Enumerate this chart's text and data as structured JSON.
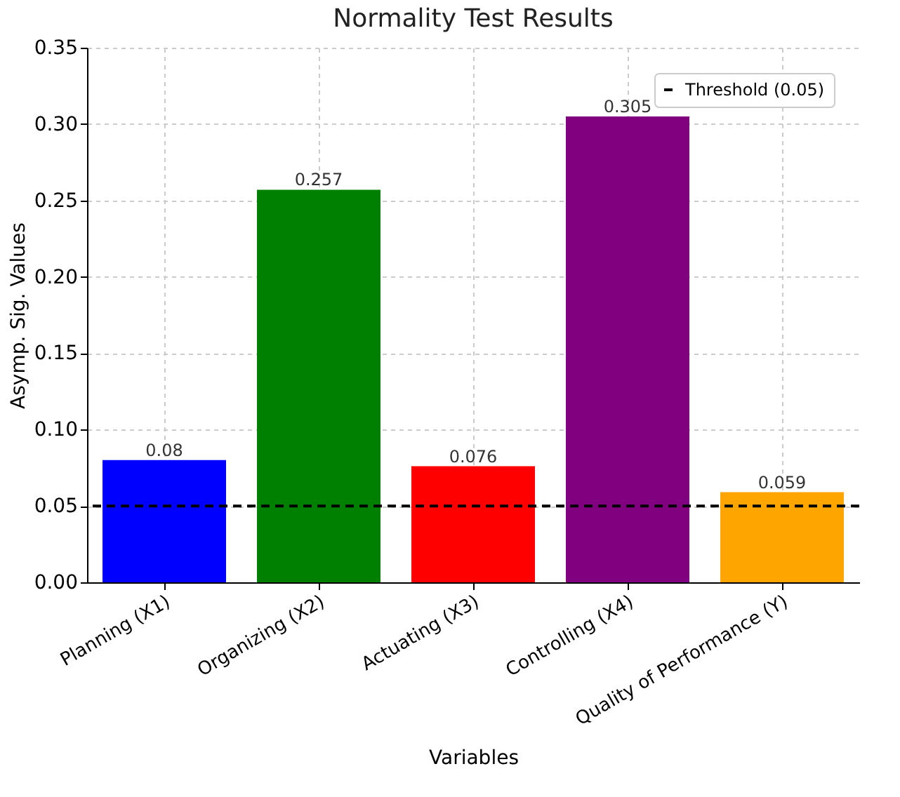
{
  "chart_data": {
    "type": "bar",
    "title": "Normality Test Results",
    "xlabel": "Variables",
    "ylabel": "Asymp. Sig. Values",
    "categories": [
      "Planning (X1)",
      "Organizing (X2)",
      "Actuating (X3)",
      "Controlling (X4)",
      "Quality of Performance (Y)"
    ],
    "values": [
      0.08,
      0.257,
      0.076,
      0.305,
      0.059
    ],
    "colors": [
      "#0000ff",
      "#008000",
      "#ff0000",
      "#800080",
      "#ffa500"
    ],
    "ylim": [
      0,
      0.35
    ],
    "yticks": [
      {
        "value": 0,
        "label": "0.00"
      },
      {
        "value": 0.05,
        "label": "0.05"
      },
      {
        "value": 0.1,
        "label": "0.10"
      },
      {
        "value": 0.15,
        "label": "0.15"
      },
      {
        "value": 0.2,
        "label": "0.20"
      },
      {
        "value": 0.25,
        "label": "0.25"
      },
      {
        "value": 0.3,
        "label": "0.30"
      },
      {
        "value": 0.35,
        "label": "0.35"
      }
    ],
    "data_labels": true,
    "grid": true,
    "legend": "top right",
    "ref_lines": [
      {
        "axis": "y",
        "value": 0.05,
        "label": "Threshold (0.05)",
        "color": "#000000",
        "line_style": "dashed"
      }
    ]
  }
}
